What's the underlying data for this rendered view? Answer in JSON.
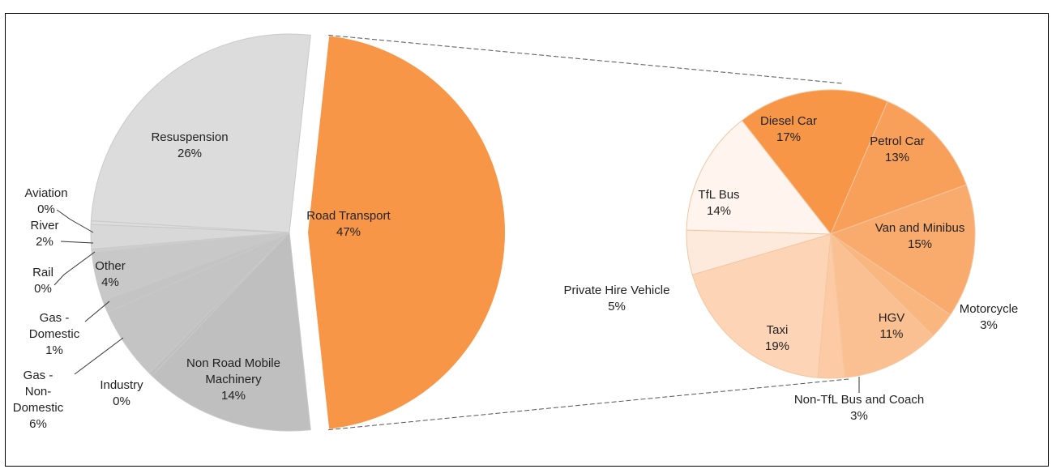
{
  "chart_data": {
    "type": "pie",
    "charts": [
      {
        "name": "main",
        "slices": [
          {
            "label": "Road Transport",
            "percent": "47%",
            "value": 47,
            "color": "#f79646"
          },
          {
            "label": "Non Road Mobile Machinery",
            "percent": "14%",
            "value": 14,
            "color": "#bfbfbf"
          },
          {
            "label": "Industry",
            "percent": "0%",
            "value": 0.3,
            "color": "#bfbfbf"
          },
          {
            "label": "Gas - Non-Domestic",
            "percent": "6%",
            "value": 6,
            "color": "#c4c4c4"
          },
          {
            "label": "Gas - Domestic",
            "percent": "1%",
            "value": 1,
            "color": "#c4c4c4"
          },
          {
            "label": "Other",
            "percent": "4%",
            "value": 4,
            "color": "#c8c8c8"
          },
          {
            "label": "Rail",
            "percent": "0%",
            "value": 0.3,
            "color": "#cdcdcd"
          },
          {
            "label": "River",
            "percent": "2%",
            "value": 2,
            "color": "#d8d8d8"
          },
          {
            "label": "Aviation",
            "percent": "0%",
            "value": 0.3,
            "color": "#dddddd"
          },
          {
            "label": "Resuspension",
            "percent": "26%",
            "value": 26,
            "color": "#dcdcdc"
          }
        ]
      },
      {
        "name": "road-transport-breakdown",
        "slices": [
          {
            "label": "Diesel Car",
            "percent": "17%",
            "value": 17,
            "color": "#f79646"
          },
          {
            "label": "Petrol Car",
            "percent": "13%",
            "value": 13,
            "color": "#f8a05a"
          },
          {
            "label": "Van and Minibus",
            "percent": "15%",
            "value": 15,
            "color": "#f9ab6d"
          },
          {
            "label": "Motorcycle",
            "percent": "3%",
            "value": 3,
            "color": "#fab67f"
          },
          {
            "label": "HGV",
            "percent": "11%",
            "value": 11,
            "color": "#fbc092"
          },
          {
            "label": "Non-TfL Bus and Coach",
            "percent": "3%",
            "value": 3,
            "color": "#fccaa4"
          },
          {
            "label": "Taxi",
            "percent": "19%",
            "value": 19,
            "color": "#fdd5b6"
          },
          {
            "label": "Private Hire Vehicle",
            "percent": "5%",
            "value": 5,
            "color": "#feeadc"
          },
          {
            "label": "TfL Bus",
            "percent": "14%",
            "value": 14,
            "color": "#fff5ee"
          }
        ]
      }
    ]
  }
}
